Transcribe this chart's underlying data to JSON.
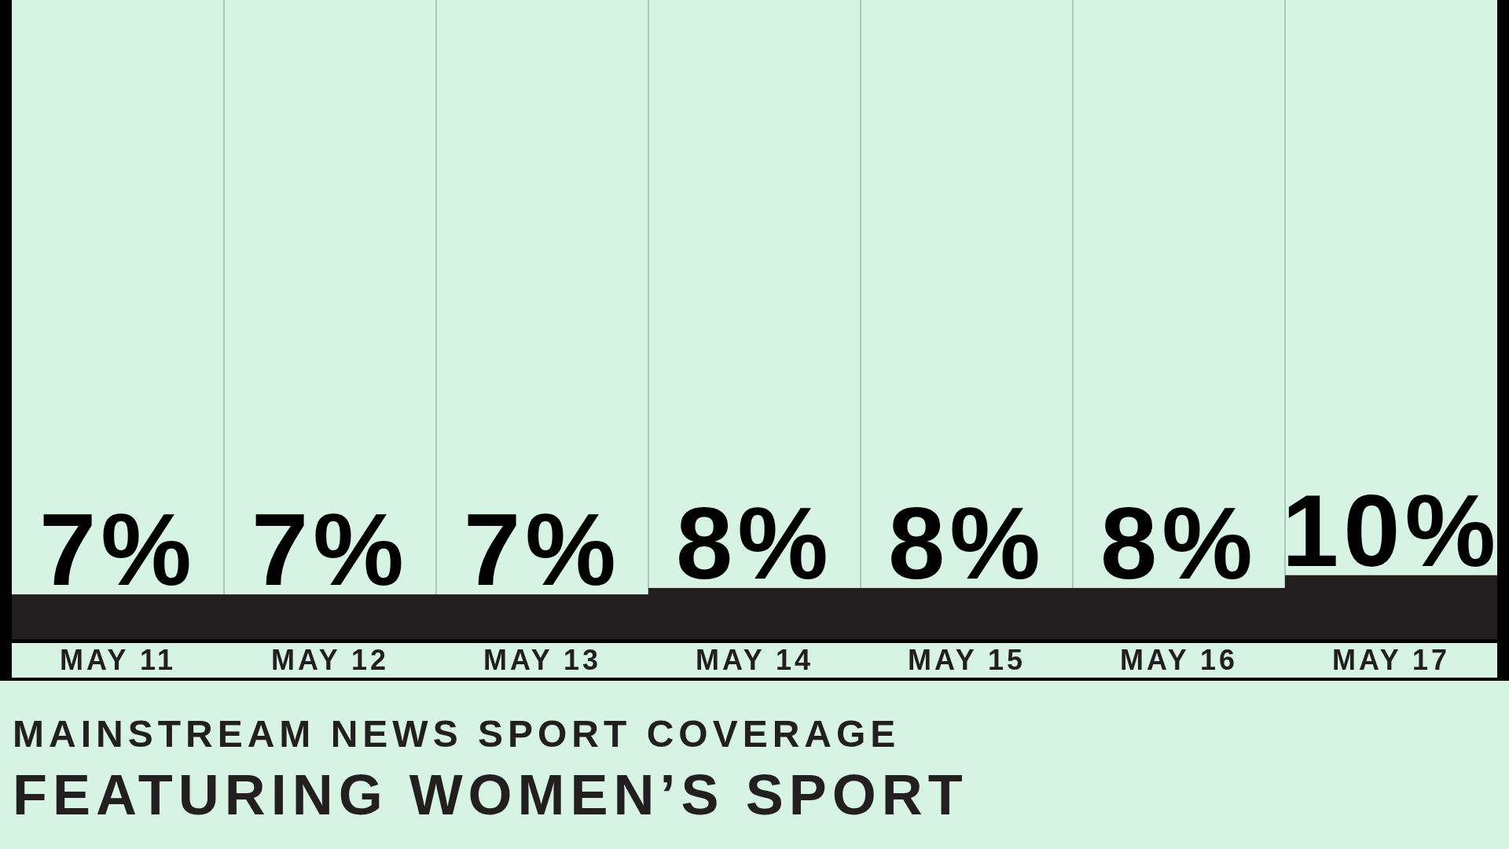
{
  "chart_data": {
    "type": "bar",
    "title": "MAINSTREAM NEWS SPORT COVERAGE",
    "subtitle": "FEATURING WOMEN’S SPORT",
    "categories": [
      "MAY 11",
      "MAY 12",
      "MAY 13",
      "MAY 14",
      "MAY 15",
      "MAY 16",
      "MAY 17"
    ],
    "values": [
      7,
      7,
      7,
      8,
      8,
      8,
      10
    ],
    "value_labels": [
      "7%",
      "7%",
      "7%",
      "8%",
      "8%",
      "8%",
      "10%"
    ],
    "color": "#231f20",
    "ylim": [
      0,
      100
    ],
    "tick_labels": "x"
  }
}
